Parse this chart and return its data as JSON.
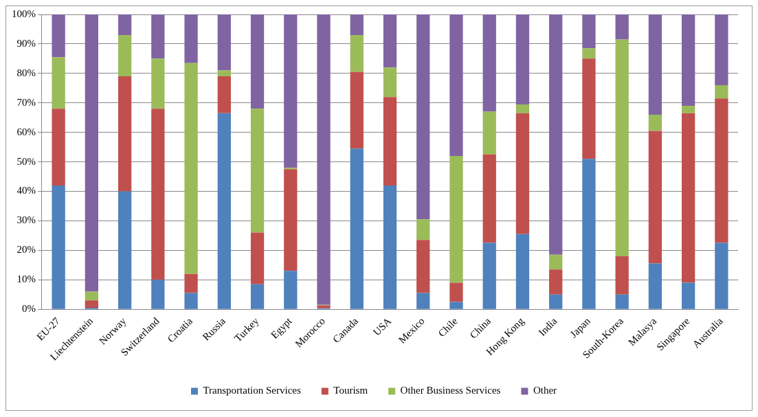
{
  "chart_data": {
    "type": "bar",
    "stacked": true,
    "categories": [
      "EU-27",
      "Liechtenstein",
      "Norway",
      "Switzerland",
      "Croatia",
      "Russia",
      "Turkey",
      "Egypt",
      "Morocco",
      "Canada",
      "USA",
      "Mexico",
      "Chile",
      "China",
      "Hong Kong",
      "India",
      "Japan",
      "South-Korea",
      "Malasya",
      "Singapore",
      "Australia"
    ],
    "series": [
      {
        "name": "Transportation Services",
        "color": "#4f81bd",
        "values": [
          42,
          0.5,
          40,
          10,
          5.5,
          66.5,
          8.5,
          13,
          0.3,
          54.5,
          42,
          5.5,
          2.5,
          22.5,
          25.5,
          5,
          51,
          5,
          15.5,
          9,
          22.5
        ]
      },
      {
        "name": "Tourism",
        "color": "#c0504d",
        "values": [
          26,
          2.5,
          39,
          58,
          6.5,
          12.5,
          17.5,
          34.5,
          1,
          26,
          30,
          18,
          6.5,
          30,
          41,
          8.5,
          34,
          13,
          45,
          57.5,
          49
        ]
      },
      {
        "name": "Other Business Services",
        "color": "#9bbb59",
        "values": [
          17.5,
          3,
          14,
          17,
          71.5,
          2,
          42,
          0.5,
          0.2,
          12.5,
          10,
          7,
          43,
          14.5,
          3,
          5,
          3.5,
          73.5,
          5.5,
          2.5,
          4.5
        ]
      },
      {
        "name": "Other",
        "color": "#8064a2",
        "values": [
          14.5,
          94,
          7,
          15,
          16.5,
          19,
          32,
          52,
          98.5,
          7,
          18,
          69.5,
          48,
          33,
          30.5,
          81.5,
          11.5,
          8.5,
          34,
          31,
          24
        ]
      }
    ],
    "ylim": [
      0,
      100
    ],
    "yticks": [
      {
        "value": 0,
        "label": "0%"
      },
      {
        "value": 10,
        "label": "10%"
      },
      {
        "value": 20,
        "label": "20%"
      },
      {
        "value": 30,
        "label": "30%"
      },
      {
        "value": 40,
        "label": "40%"
      },
      {
        "value": 50,
        "label": "50%"
      },
      {
        "value": 60,
        "label": "60%"
      },
      {
        "value": 70,
        "label": "70%"
      },
      {
        "value": 80,
        "label": "80%"
      },
      {
        "value": 90,
        "label": "90%"
      },
      {
        "value": 100,
        "label": "100%"
      }
    ],
    "grid": "y",
    "legend": "bottom"
  }
}
